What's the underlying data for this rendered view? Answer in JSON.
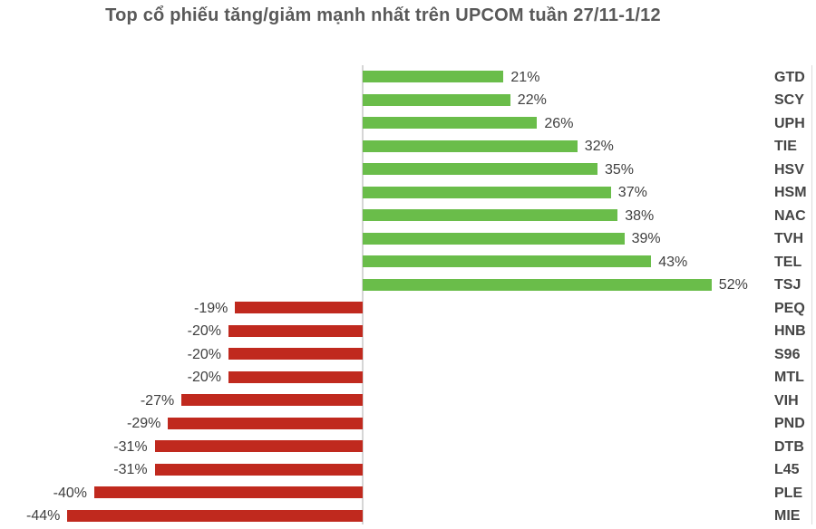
{
  "title": "Top cổ phiếu tăng/giảm mạnh nhất trên UPCOM tuần 27/11-1/12",
  "colors": {
    "positive_bar": "#6abd4a",
    "negative_bar": "#c0291e",
    "axis_line": "#d6d6d6",
    "title_text": "#595959",
    "label_text": "#3f3f3f"
  },
  "chart_data": {
    "type": "bar",
    "orientation": "horizontal",
    "title": "Top cổ phiếu tăng/giảm mạnh nhất trên UPCOM tuần 27/11-1/12",
    "xlabel": "",
    "ylabel": "",
    "xlim": [
      -54,
      68
    ],
    "grid": false,
    "legend": false,
    "categories": [
      "GTD",
      "SCY",
      "UPH",
      "TIE",
      "HSV",
      "HSM",
      "NAC",
      "TVH",
      "TEL",
      "TSJ",
      "PEQ",
      "HNB",
      "S96",
      "MTL",
      "VIH",
      "PND",
      "DTB",
      "L45",
      "PLE",
      "MIE"
    ],
    "values": [
      21,
      22,
      26,
      32,
      35,
      37,
      38,
      39,
      43,
      52,
      -19,
      -20,
      -20,
      -20,
      -27,
      -29,
      -31,
      -31,
      -40,
      -44
    ],
    "value_labels": [
      "21%",
      "22%",
      "26%",
      "32%",
      "35%",
      "37%",
      "38%",
      "39%",
      "43%",
      "52%",
      "-19%",
      "-20%",
      "-20%",
      "-20%",
      "-27%",
      "-29%",
      "-31%",
      "-31%",
      "-40%",
      "-44%"
    ]
  }
}
